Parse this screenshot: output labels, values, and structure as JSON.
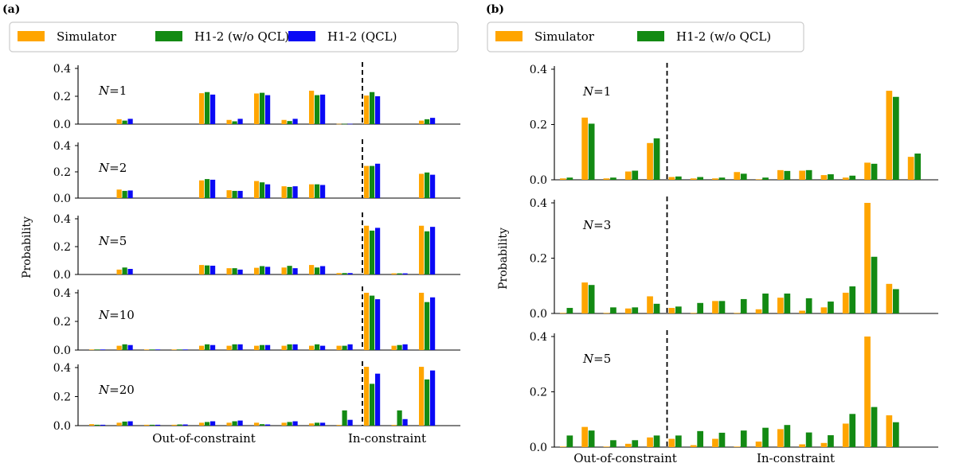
{
  "panels": [
    {
      "letter": "(a)",
      "legend": [
        "Simulator",
        "H1-2 (w/o QCL)",
        "H1-2 (QCL)"
      ],
      "ylabel": "Probability",
      "xlabels": [
        "Out-of-constraint",
        "In-constraint"
      ]
    },
    {
      "letter": "(b)",
      "legend": [
        "Simulator",
        "H1-2 (w/o QCL)"
      ],
      "ylabel": "Probability",
      "xlabels": [
        "Out-of-constraint",
        "In-constraint"
      ]
    }
  ],
  "colors": {
    "Simulator": "#FFA500",
    "H1-2 (w/o QCL)": "#138A13",
    "H1-2 (QCL)": "#0A0AF5"
  },
  "chart_data": [
    {
      "type": "bar",
      "panel": "(a)",
      "series_names": [
        "Simulator",
        "H1-2 (w/o QCL)",
        "H1-2 (QCL)"
      ],
      "n_categories": 14,
      "constraint_boundary_after_category": 10,
      "subplots": [
        {
          "label": "N=1",
          "ylim": [
            0,
            0.4
          ],
          "yticks": [
            0.0,
            0.2,
            0.4
          ],
          "series": [
            {
              "name": "Simulator",
              "values": [
                0,
                0.035,
                0,
                0,
                0.222,
                0.03,
                0.22,
                0.03,
                0.24,
                0.002,
                0.205,
                0,
                0.025,
                0
              ]
            },
            {
              "name": "H1-2 (w/o QCL)",
              "values": [
                0,
                0.025,
                0,
                0,
                0.23,
                0.02,
                0.225,
                0.022,
                0.208,
                0.002,
                0.23,
                0,
                0.035,
                0
              ]
            },
            {
              "name": "H1-2 (QCL)",
              "values": [
                0,
                0.038,
                0,
                0,
                0.212,
                0.038,
                0.208,
                0.038,
                0.212,
                0.002,
                0.2,
                0,
                0.045,
                0
              ]
            }
          ]
        },
        {
          "label": "N=2",
          "ylim": [
            0,
            0.4
          ],
          "yticks": [
            0.0,
            0.2,
            0.4
          ],
          "series": [
            {
              "name": "Simulator",
              "values": [
                0,
                0.065,
                0,
                0,
                0.135,
                0.06,
                0.13,
                0.09,
                0.105,
                0,
                0.245,
                0,
                0.185,
                0
              ]
            },
            {
              "name": "H1-2 (w/o QCL)",
              "values": [
                0,
                0.055,
                0,
                0,
                0.145,
                0.055,
                0.12,
                0.085,
                0.105,
                0,
                0.245,
                0,
                0.195,
                0
              ]
            },
            {
              "name": "H1-2 (QCL)",
              "values": [
                0,
                0.058,
                0,
                0,
                0.14,
                0.055,
                0.105,
                0.09,
                0.1,
                0,
                0.262,
                0,
                0.178,
                0
              ]
            }
          ]
        },
        {
          "label": "N=5",
          "ylim": [
            0,
            0.4
          ],
          "yticks": [
            0.0,
            0.2,
            0.4
          ],
          "series": [
            {
              "name": "Simulator",
              "values": [
                0,
                0.035,
                0,
                0,
                0.068,
                0.045,
                0.048,
                0.05,
                0.068,
                0.01,
                0.35,
                0.008,
                0.35,
                0
              ]
            },
            {
              "name": "H1-2 (w/o QCL)",
              "values": [
                0,
                0.05,
                0,
                0,
                0.065,
                0.045,
                0.06,
                0.062,
                0.05,
                0.01,
                0.315,
                0.008,
                0.31,
                0
              ]
            },
            {
              "name": "H1-2 (QCL)",
              "values": [
                0,
                0.04,
                0,
                0,
                0.063,
                0.035,
                0.055,
                0.045,
                0.06,
                0.01,
                0.335,
                0.008,
                0.342,
                0
              ]
            }
          ]
        },
        {
          "label": "N=10",
          "ylim": [
            0,
            0.4
          ],
          "yticks": [
            0.0,
            0.2,
            0.4
          ],
          "series": [
            {
              "name": "Simulator",
              "values": [
                0.004,
                0.03,
                0.004,
                0.004,
                0.03,
                0.03,
                0.03,
                0.03,
                0.03,
                0.03,
                0.4,
                0.03,
                0.4,
                0
              ]
            },
            {
              "name": "H1-2 (w/o QCL)",
              "values": [
                0.004,
                0.04,
                0.004,
                0.004,
                0.04,
                0.04,
                0.035,
                0.04,
                0.04,
                0.03,
                0.38,
                0.035,
                0.335,
                0
              ]
            },
            {
              "name": "H1-2 (QCL)",
              "values": [
                0.004,
                0.035,
                0.004,
                0.004,
                0.035,
                0.04,
                0.035,
                0.04,
                0.03,
                0.04,
                0.355,
                0.04,
                0.368,
                0
              ]
            }
          ]
        },
        {
          "label": "N=20",
          "ylim": [
            0,
            0.4
          ],
          "yticks": [
            0.0,
            0.2,
            0.4
          ],
          "series": [
            {
              "name": "Simulator",
              "values": [
                0.01,
                0.02,
                0.006,
                0.006,
                0.02,
                0.02,
                0.02,
                0.02,
                0.015,
                0.005,
                0.405,
                0.005,
                0.405,
                0
              ]
            },
            {
              "name": "H1-2 (w/o QCL)",
              "values": [
                0.006,
                0.028,
                0.006,
                0.008,
                0.025,
                0.03,
                0.01,
                0.025,
                0.02,
                0.105,
                0.288,
                0.105,
                0.318,
                0
              ]
            },
            {
              "name": "H1-2 (QCL)",
              "values": [
                0.006,
                0.03,
                0.006,
                0.008,
                0.03,
                0.035,
                0.008,
                0.03,
                0.02,
                0.04,
                0.358,
                0.045,
                0.38,
                0
              ]
            }
          ]
        }
      ]
    },
    {
      "type": "bar",
      "panel": "(b)",
      "series_names": [
        "Simulator",
        "H1-2 (w/o QCL)"
      ],
      "n_categories": 20,
      "constraint_boundary_after_category": 5,
      "subplots": [
        {
          "label": "N=1",
          "ylim": [
            0,
            0.4
          ],
          "yticks": [
            0.0,
            0.2,
            0.4
          ],
          "series": [
            {
              "name": "Simulator",
              "values": [
                0.005,
                0.225,
                0.005,
                0.03,
                0.133,
                0.01,
                0.005,
                0.005,
                0.028,
                0.002,
                0.035,
                0.033,
                0.017,
                0.008,
                0.062,
                0.322,
                0.083,
                0,
                0,
                0
              ]
            },
            {
              "name": "H1-2 (w/o QCL)",
              "values": [
                0.008,
                0.203,
                0.008,
                0.033,
                0.15,
                0.012,
                0.01,
                0.008,
                0.022,
                0.008,
                0.032,
                0.035,
                0.02,
                0.015,
                0.058,
                0.3,
                0.095,
                0,
                0,
                0
              ]
            }
          ]
        },
        {
          "label": "N=3",
          "ylim": [
            0,
            0.4
          ],
          "yticks": [
            0.0,
            0.2,
            0.4
          ],
          "series": [
            {
              "name": "Simulator",
              "values": [
                0.002,
                0.112,
                0.002,
                0.018,
                0.062,
                0.02,
                0.002,
                0.045,
                0.002,
                0.015,
                0.057,
                0.01,
                0.022,
                0.075,
                0.4,
                0.107,
                0,
                0,
                0,
                0
              ]
            },
            {
              "name": "H1-2 (w/o QCL)",
              "values": [
                0.02,
                0.103,
                0.022,
                0.022,
                0.035,
                0.025,
                0.038,
                0.045,
                0.052,
                0.072,
                0.072,
                0.055,
                0.043,
                0.098,
                0.205,
                0.088,
                0,
                0,
                0,
                0
              ]
            }
          ]
        },
        {
          "label": "N=5",
          "ylim": [
            0,
            0.4
          ],
          "yticks": [
            0.0,
            0.2,
            0.4
          ],
          "series": [
            {
              "name": "Simulator",
              "values": [
                0.002,
                0.073,
                0.002,
                0.012,
                0.035,
                0.03,
                0.007,
                0.03,
                0.002,
                0.02,
                0.065,
                0.01,
                0.015,
                0.085,
                0.4,
                0.115,
                0,
                0,
                0,
                0
              ]
            },
            {
              "name": "H1-2 (w/o QCL)",
              "values": [
                0.042,
                0.06,
                0.025,
                0.025,
                0.042,
                0.042,
                0.058,
                0.052,
                0.06,
                0.07,
                0.08,
                0.053,
                0.043,
                0.12,
                0.145,
                0.09,
                0,
                0,
                0,
                0
              ]
            }
          ]
        }
      ]
    }
  ]
}
